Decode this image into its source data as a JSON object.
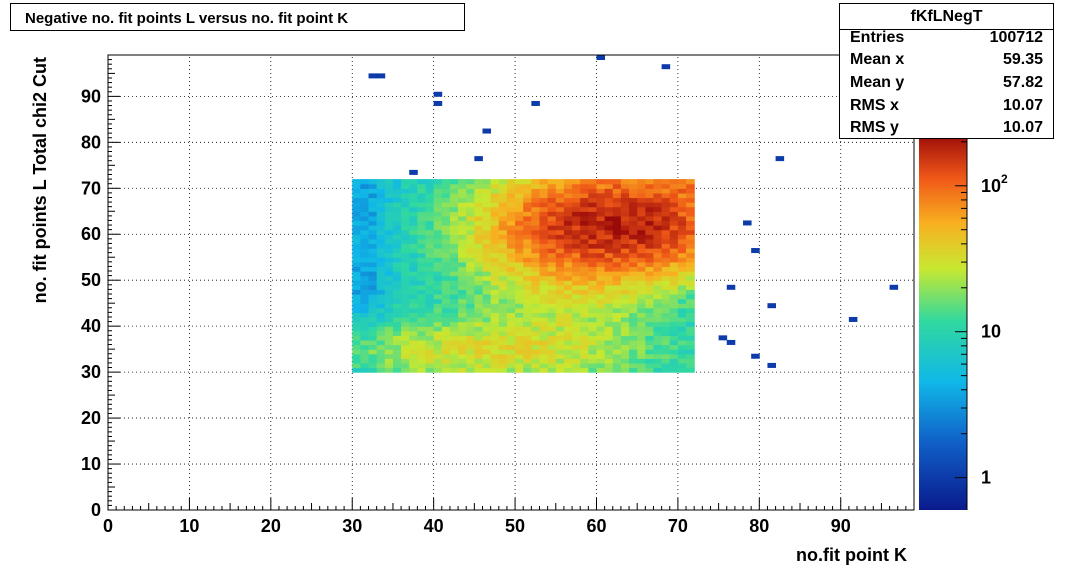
{
  "title": "Negative no. fit points L versus no. fit point K",
  "stats": {
    "name": "fKfLNegT",
    "rows": [
      {
        "label": "Entries",
        "value": "100712"
      },
      {
        "label": "Mean x",
        "value": "59.35"
      },
      {
        "label": "Mean y",
        "value": "57.82"
      },
      {
        "label": "RMS x",
        "value": "10.07"
      },
      {
        "label": "RMS y",
        "value": "10.07"
      }
    ]
  },
  "chart_data": {
    "type": "heatmap",
    "title": "Negative no. fit points L versus no. fit point K",
    "xlabel": "no.fit point K",
    "ylabel": "no. fit points  L  Total chi2 Cut",
    "xlim": [
      0,
      99
    ],
    "ylim": [
      0,
      99
    ],
    "x_ticks": [
      0,
      10,
      20,
      30,
      40,
      50,
      60,
      70,
      80,
      90
    ],
    "y_ticks": [
      0,
      10,
      20,
      30,
      40,
      50,
      60,
      70,
      80,
      90
    ],
    "grid": true,
    "z_scale": "log",
    "z_range": [
      0.6,
      230
    ],
    "z_ticks": [
      {
        "value": 1,
        "label": "1"
      },
      {
        "value": 10,
        "label": "10"
      },
      {
        "value": 100,
        "label": "10",
        "exp": "2"
      }
    ],
    "dense_region": {
      "x_range": [
        30,
        72
      ],
      "y_range": [
        30,
        72
      ],
      "peak": [
        62,
        62
      ],
      "peak_value": 180
    },
    "isolated_bins": [
      [
        32,
        94
      ],
      [
        33,
        94
      ],
      [
        40,
        90
      ],
      [
        40,
        88
      ],
      [
        52,
        88
      ],
      [
        46,
        82
      ],
      [
        45,
        76
      ],
      [
        37,
        73
      ],
      [
        60,
        98
      ],
      [
        68,
        96
      ],
      [
        82,
        76
      ],
      [
        78,
        62
      ],
      [
        79,
        56
      ],
      [
        76,
        48
      ],
      [
        96,
        48
      ],
      [
        81,
        44
      ],
      [
        91,
        41
      ],
      [
        75,
        37
      ],
      [
        76,
        36
      ],
      [
        79,
        33
      ],
      [
        81,
        31
      ]
    ]
  }
}
